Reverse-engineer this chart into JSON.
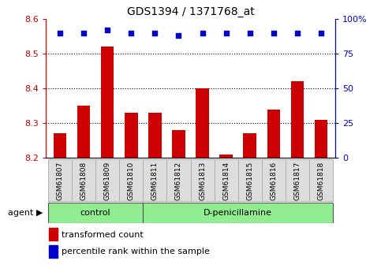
{
  "title": "GDS1394 / 1371768_at",
  "samples": [
    "GSM61807",
    "GSM61808",
    "GSM61809",
    "GSM61810",
    "GSM61811",
    "GSM61812",
    "GSM61813",
    "GSM61814",
    "GSM61815",
    "GSM61816",
    "GSM61817",
    "GSM61818"
  ],
  "transformed_count": [
    8.27,
    8.35,
    8.52,
    8.33,
    8.33,
    8.28,
    8.4,
    8.21,
    8.27,
    8.34,
    8.42,
    8.31
  ],
  "percentile_rank": [
    90,
    90,
    92,
    90,
    90,
    88,
    90,
    90,
    90,
    90,
    90,
    90
  ],
  "ylim_left": [
    8.2,
    8.6
  ],
  "ylim_right": [
    0,
    100
  ],
  "yticks_left": [
    8.2,
    8.3,
    8.4,
    8.5,
    8.6
  ],
  "yticks_right": [
    0,
    25,
    50,
    75,
    100
  ],
  "bar_color": "#cc0000",
  "dot_color": "#0000cc",
  "control_samples": 4,
  "control_label": "control",
  "treatment_label": "D-penicillamine",
  "agent_label": "agent",
  "legend_bar_label": "transformed count",
  "legend_dot_label": "percentile rank within the sample",
  "control_bg": "#90EE90",
  "treatment_bg": "#90EE90",
  "sample_bg": "#dddddd",
  "left_tick_color": "#cc0000",
  "right_tick_color": "#0000cc",
  "figsize": [
    4.83,
    3.45
  ],
  "dpi": 100
}
